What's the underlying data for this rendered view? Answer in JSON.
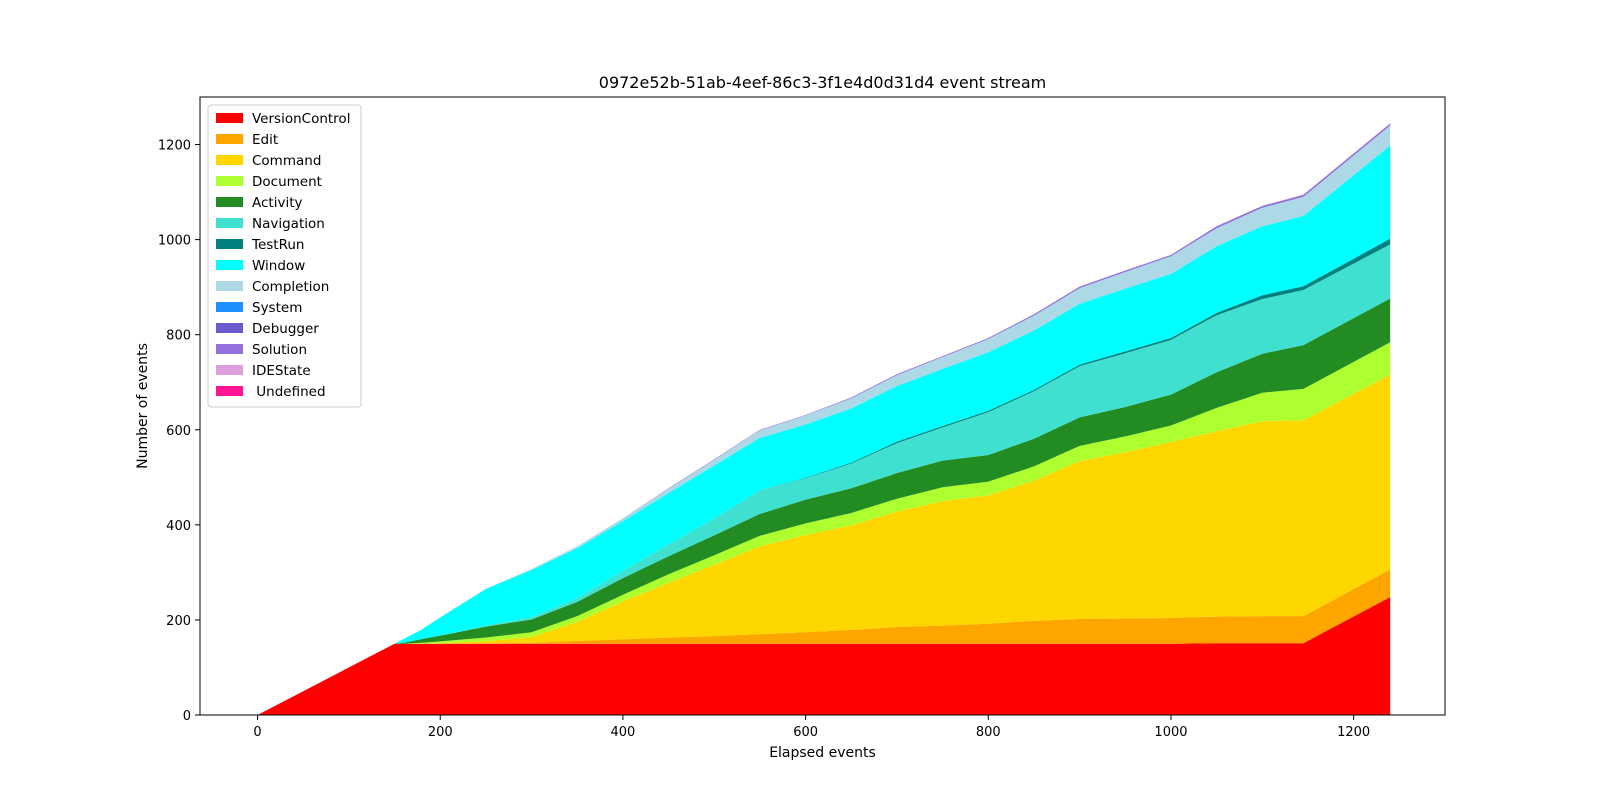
{
  "chart_data": {
    "type": "area",
    "title": "0972e52b-51ab-4eef-86c3-3f1e4d0d31d4 event stream",
    "xlabel": "Elapsed events",
    "ylabel": "Number of events",
    "xlim": [
      -63,
      1300
    ],
    "ylim": [
      0,
      1300
    ],
    "xticks": [
      0,
      200,
      400,
      600,
      800,
      1000,
      1200
    ],
    "yticks": [
      0,
      200,
      400,
      600,
      800,
      1000,
      1200
    ],
    "grid": false,
    "legend_position": "upper-left",
    "x": [
      0,
      150,
      160,
      180,
      200,
      250,
      300,
      350,
      400,
      450,
      500,
      550,
      600,
      650,
      700,
      750,
      800,
      850,
      900,
      950,
      1000,
      1050,
      1100,
      1145,
      1240
    ],
    "series": [
      {
        "name": "VersionControl",
        "color": "#ff0000",
        "values": [
          0,
          150,
          150,
          150,
          150,
          150,
          150,
          150,
          150,
          150,
          150,
          150,
          150,
          150,
          150,
          150,
          150,
          150,
          150,
          150,
          150,
          151,
          151,
          151,
          248
        ]
      },
      {
        "name": "Edit",
        "color": "#ffa500",
        "values": [
          0,
          0,
          0,
          0,
          0,
          1,
          2,
          6,
          9,
          13,
          16,
          20,
          24,
          29,
          35,
          38,
          42,
          48,
          52,
          53,
          54,
          56,
          57,
          57,
          58
        ]
      },
      {
        "name": "Command",
        "color": "#ffd700",
        "values": [
          0,
          0,
          0,
          0,
          1,
          4,
          12,
          40,
          80,
          115,
          150,
          185,
          205,
          220,
          243,
          262,
          270,
          295,
          332,
          350,
          370,
          390,
          410,
          412,
          410
        ]
      },
      {
        "name": "Document",
        "color": "#adff2f",
        "values": [
          0,
          0,
          0,
          2,
          4,
          8,
          10,
          12,
          14,
          18,
          20,
          22,
          24,
          26,
          27,
          29,
          29,
          30,
          32,
          33,
          35,
          49,
          60,
          66,
          68
        ]
      },
      {
        "name": "Activity",
        "color": "#228b22",
        "values": [
          0,
          0,
          2,
          8,
          12,
          23,
          27,
          30,
          35,
          38,
          42,
          46,
          50,
          52,
          54,
          56,
          56,
          58,
          60,
          62,
          65,
          75,
          82,
          92,
          92
        ]
      },
      {
        "name": "Navigation",
        "color": "#40e0d0",
        "values": [
          0,
          0,
          0,
          0,
          0,
          2,
          5,
          8,
          15,
          25,
          35,
          50,
          45,
          52,
          63,
          70,
          90,
          100,
          108,
          113,
          115,
          120,
          115,
          116,
          114
        ]
      },
      {
        "name": "TestRun",
        "color": "#008080",
        "values": [
          0,
          0,
          0,
          0,
          0,
          0,
          0,
          0,
          0,
          0,
          0,
          0,
          1,
          2,
          3,
          3,
          3,
          3,
          3,
          4,
          4,
          5,
          8,
          8,
          12
        ]
      },
      {
        "name": "Window",
        "color": "#00ffff",
        "values": [
          0,
          0,
          8,
          20,
          38,
          77,
          99,
          105,
          105,
          108,
          112,
          110,
          112,
          114,
          117,
          120,
          123,
          125,
          128,
          132,
          135,
          140,
          145,
          148,
          196
        ]
      },
      {
        "name": "Completion",
        "color": "#add8e6",
        "values": [
          0,
          0,
          0,
          0,
          0,
          1,
          2,
          4,
          6,
          9,
          12,
          16,
          19,
          21,
          23,
          25,
          28,
          31,
          33,
          35,
          37,
          38,
          39,
          40,
          42
        ]
      },
      {
        "name": "System",
        "color": "#1e90ff",
        "values": [
          0,
          0,
          0,
          0,
          0,
          0,
          0,
          0,
          0,
          0,
          0,
          0,
          0,
          0,
          0,
          0,
          0,
          0,
          0,
          0,
          0,
          0,
          0,
          0,
          0
        ]
      },
      {
        "name": "Debugger",
        "color": "#6a5acd",
        "values": [
          0,
          0,
          0,
          0,
          0,
          0,
          0,
          0,
          0,
          0,
          0,
          0,
          0,
          0,
          0,
          0,
          0,
          0,
          0,
          0,
          0,
          0,
          0,
          0,
          0
        ]
      },
      {
        "name": "Solution",
        "color": "#9370db",
        "values": [
          0,
          0,
          0,
          0,
          0,
          0,
          0,
          0,
          0,
          1,
          1,
          1,
          1,
          2,
          2,
          2,
          2,
          3,
          3,
          3,
          3,
          4,
          4,
          4,
          4
        ]
      },
      {
        "name": "IDEState",
        "color": "#dda0dd",
        "values": [
          0,
          0,
          0,
          0,
          0,
          0,
          0,
          0,
          0,
          0,
          0,
          0,
          0,
          0,
          0,
          0,
          0,
          0,
          0,
          0,
          0,
          0,
          0,
          1,
          1
        ]
      },
      {
        "name": " Undefined",
        "color": "#ff1493",
        "values": [
          0,
          0,
          0,
          0,
          0,
          0,
          0,
          0,
          0,
          0,
          0,
          0,
          0,
          0,
          0,
          0,
          0,
          0,
          0,
          0,
          0,
          0,
          0,
          0,
          0
        ]
      }
    ]
  }
}
